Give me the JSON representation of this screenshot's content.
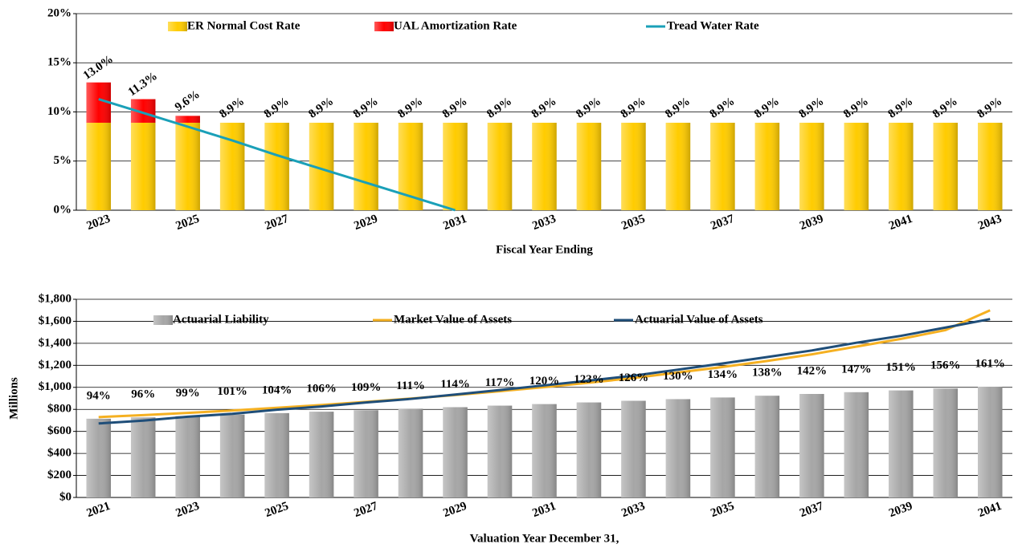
{
  "chart_data": [
    {
      "type": "bar",
      "stacked": true,
      "xlabel": "Fiscal Year Ending",
      "categories": [
        "2023",
        null,
        "2025",
        null,
        "2027",
        null,
        "2029",
        null,
        "2031",
        null,
        "2033",
        null,
        "2035",
        null,
        "2037",
        null,
        "2039",
        null,
        "2041",
        null,
        "2043"
      ],
      "series": [
        {
          "name": "ER Normal Cost Rate",
          "type": "bar",
          "color": "#ffcc00",
          "values": [
            8.9,
            8.9,
            8.9,
            8.9,
            8.9,
            8.9,
            8.9,
            8.9,
            8.9,
            8.9,
            8.9,
            8.9,
            8.9,
            8.9,
            8.9,
            8.9,
            8.9,
            8.9,
            8.9,
            8.9,
            8.9
          ]
        },
        {
          "name": "UAL Amortization Rate",
          "type": "bar",
          "color": "#ff0000",
          "values": [
            4.1,
            2.4,
            0.7,
            0,
            0,
            0,
            0,
            0,
            0,
            0,
            0,
            0,
            0,
            0,
            0,
            0,
            0,
            0,
            0,
            0,
            0
          ]
        },
        {
          "name": "Tread Water Rate",
          "type": "line",
          "color": "#1aa0b8",
          "values": [
            11.3,
            9.9,
            8.5,
            7.1,
            5.6,
            4.2,
            2.8,
            1.4,
            0,
            null,
            null,
            null,
            null,
            null,
            null,
            null,
            null,
            null,
            null,
            null,
            null
          ]
        }
      ],
      "bar_labels": {
        "values": [
          13.0,
          11.3,
          9.6,
          8.9,
          8.9,
          8.9,
          8.9,
          8.9,
          8.9,
          8.9,
          8.9,
          8.9,
          8.9,
          8.9,
          8.9,
          8.9,
          8.9,
          8.9,
          8.9,
          8.9,
          8.9
        ],
        "value_labels": [
          "13.0%",
          "11.3%",
          "9.6%",
          "8.9%",
          "8.9%",
          "8.9%",
          "8.9%",
          "8.9%",
          "8.9%",
          "8.9%",
          "8.9%",
          "8.9%",
          "8.9%",
          "8.9%",
          "8.9%",
          "8.9%",
          "8.9%",
          "8.9%",
          "8.9%",
          "8.9%",
          "8.9%"
        ]
      },
      "ylim": [
        0,
        20
      ],
      "yticks": [
        {
          "value": 0,
          "label": "0%"
        },
        {
          "value": 5,
          "label": "5%"
        },
        {
          "value": 10,
          "label": "10%"
        },
        {
          "value": 15,
          "label": "15%"
        },
        {
          "value": 20,
          "label": "20%"
        }
      ],
      "grid": true,
      "legend": "top"
    },
    {
      "type": "bar",
      "stacked": false,
      "xlabel": "Valuation Year December 31,",
      "ylabel": "Millions",
      "categories": [
        "2021",
        null,
        "2023",
        null,
        "2025",
        null,
        "2027",
        null,
        "2029",
        null,
        "2031",
        null,
        "2033",
        null,
        "2035",
        null,
        "2037",
        null,
        "2039",
        null,
        "2041"
      ],
      "series": [
        {
          "name": "Actuarial Liability",
          "type": "bar",
          "color": "#a6a6a6",
          "values": [
            715,
            727,
            740,
            753,
            766,
            779,
            792,
            806,
            820,
            834,
            848,
            863,
            878,
            893,
            908,
            924,
            940,
            956,
            972,
            989,
            1006
          ]
        },
        {
          "name": "Market Value of Assets",
          "type": "line",
          "color": "#f5b021",
          "values": [
            730,
            748,
            768,
            790,
            814,
            840,
            868,
            898,
            930,
            965,
            1002,
            1042,
            1085,
            1135,
            1185,
            1240,
            1300,
            1370,
            1440,
            1520,
            1700
          ]
        },
        {
          "name": "Actuarial Value of Assets",
          "type": "line",
          "color": "#1f4e79",
          "values": [
            672,
            698,
            733,
            760,
            797,
            826,
            863,
            895,
            935,
            976,
            1018,
            1061,
            1106,
            1161,
            1217,
            1275,
            1335,
            1405,
            1468,
            1543,
            1620
          ]
        }
      ],
      "bar_labels": {
        "values": [
          94,
          96,
          99,
          101,
          104,
          106,
          109,
          111,
          114,
          117,
          120,
          123,
          126,
          130,
          134,
          138,
          142,
          147,
          151,
          156,
          161
        ],
        "value_labels": [
          "94%",
          "96%",
          "99%",
          "101%",
          "104%",
          "106%",
          "109%",
          "111%",
          "114%",
          "117%",
          "120%",
          "123%",
          "126%",
          "130%",
          "134%",
          "138%",
          "142%",
          "147%",
          "151%",
          "156%",
          "161%"
        ]
      },
      "ylim": [
        0,
        1800
      ],
      "yticks": [
        {
          "value": 0,
          "label": "$0"
        },
        {
          "value": 200,
          "label": "$200"
        },
        {
          "value": 400,
          "label": "$400"
        },
        {
          "value": 600,
          "label": "$600"
        },
        {
          "value": 800,
          "label": "$800"
        },
        {
          "value": 1000,
          "label": "$1,000"
        },
        {
          "value": 1200,
          "label": "$1,200"
        },
        {
          "value": 1400,
          "label": "$1,400"
        },
        {
          "value": 1600,
          "label": "$1,600"
        },
        {
          "value": 1800,
          "label": "$1,800"
        }
      ],
      "grid": true,
      "legend": "top"
    }
  ]
}
